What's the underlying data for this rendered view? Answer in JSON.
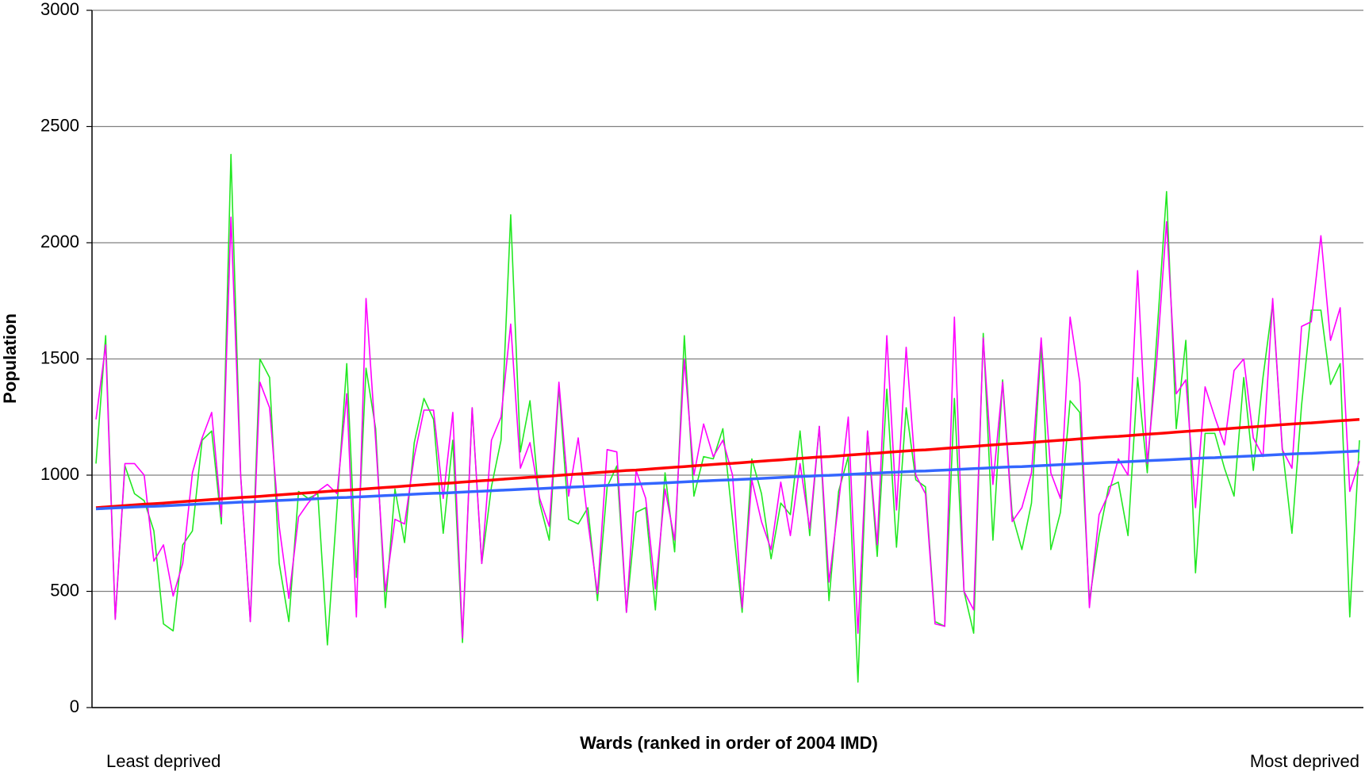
{
  "chart_data": {
    "type": "line",
    "y_label": "Population",
    "x_label": "Wards (ranked in order of 2004 IMD)",
    "annotations": [
      "Least deprived",
      "Most deprived"
    ],
    "ylim": [
      0,
      3000
    ],
    "yticks": [
      0,
      500,
      1000,
      1500,
      2000,
      2500,
      3000
    ],
    "grid": true,
    "series": [
      {
        "color": "#22e822",
        "width": 1.6,
        "values": [
          1050,
          1600,
          380,
          1040,
          920,
          890,
          760,
          360,
          330,
          700,
          760,
          1150,
          1190,
          790,
          2380,
          1000,
          370,
          1500,
          1420,
          620,
          370,
          930,
          900,
          920,
          270,
          870,
          1480,
          560,
          1460,
          1200,
          430,
          940,
          710,
          1140,
          1330,
          1240,
          750,
          1150,
          280,
          1290,
          620,
          950,
          1150,
          2120,
          1100,
          1320,
          880,
          720,
          1380,
          810,
          790,
          860,
          460,
          950,
          1040,
          410,
          840,
          860,
          420,
          1010,
          670,
          1600,
          910,
          1080,
          1070,
          1200,
          810,
          410,
          1070,
          920,
          640,
          880,
          830,
          1190,
          740,
          1210,
          460,
          930,
          1080,
          110,
          1190,
          650,
          1370,
          690,
          1290,
          980,
          950,
          370,
          350,
          1330,
          500,
          320,
          1610,
          720,
          1410,
          830,
          680,
          880,
          1560,
          680,
          840,
          1320,
          1270,
          460,
          740,
          950,
          970,
          740,
          1420,
          1010,
          1600,
          2220,
          1200,
          1580,
          580,
          1180,
          1180,
          1030,
          910,
          1420,
          1020,
          1420,
          1740,
          1120,
          750,
          1300,
          1710,
          1710,
          1390,
          1480,
          390,
          1150
        ]
      },
      {
        "color": "#ff00ff",
        "width": 1.6,
        "values": [
          1240,
          1560,
          380,
          1050,
          1050,
          1000,
          630,
          700,
          480,
          620,
          1010,
          1160,
          1270,
          820,
          2110,
          1000,
          370,
          1400,
          1290,
          780,
          470,
          820,
          880,
          930,
          960,
          920,
          1350,
          390,
          1760,
          1150,
          500,
          810,
          790,
          1080,
          1280,
          1280,
          900,
          1270,
          300,
          1290,
          620,
          1150,
          1250,
          1650,
          1030,
          1140,
          900,
          780,
          1400,
          910,
          1160,
          800,
          490,
          1110,
          1100,
          410,
          1020,
          900,
          510,
          940,
          720,
          1500,
          1000,
          1220,
          1080,
          1150,
          1000,
          430,
          980,
          800,
          680,
          970,
          740,
          1050,
          770,
          1210,
          540,
          880,
          1250,
          320,
          1190,
          700,
          1600,
          850,
          1550,
          1000,
          920,
          360,
          350,
          1680,
          500,
          420,
          1590,
          960,
          1400,
          800,
          860,
          1010,
          1590,
          1010,
          900,
          1680,
          1400,
          430,
          830,
          920,
          1070,
          1000,
          1880,
          1050,
          1500,
          2090,
          1350,
          1410,
          860,
          1380,
          1250,
          1130,
          1450,
          1500,
          1160,
          1080,
          1760,
          1110,
          1030,
          1640,
          1660,
          2030,
          1580,
          1720,
          930,
          1060
        ]
      },
      {
        "color": "#ff0000",
        "width": 3.5,
        "values": [
          860,
          863,
          866,
          869,
          872,
          875,
          877,
          880,
          883,
          886,
          889,
          892,
          895,
          898,
          901,
          904,
          906,
          909,
          912,
          915,
          918,
          921,
          924,
          927,
          930,
          933,
          935,
          938,
          941,
          944,
          947,
          950,
          953,
          956,
          959,
          962,
          964,
          967,
          970,
          973,
          976,
          979,
          982,
          985,
          988,
          991,
          993,
          996,
          999,
          1002,
          1005,
          1008,
          1011,
          1014,
          1017,
          1020,
          1022,
          1025,
          1028,
          1031,
          1034,
          1037,
          1040,
          1043,
          1046,
          1049,
          1051,
          1054,
          1057,
          1060,
          1063,
          1066,
          1069,
          1072,
          1075,
          1078,
          1080,
          1083,
          1086,
          1089,
          1092,
          1095,
          1098,
          1101,
          1104,
          1107,
          1109,
          1112,
          1115,
          1118,
          1121,
          1124,
          1127,
          1130,
          1133,
          1136,
          1138,
          1141,
          1144,
          1147,
          1150,
          1153,
          1156,
          1159,
          1162,
          1165,
          1167,
          1170,
          1173,
          1176,
          1179,
          1182,
          1185,
          1188,
          1191,
          1194,
          1196,
          1199,
          1202,
          1205,
          1208,
          1211,
          1214,
          1217,
          1220,
          1223,
          1225,
          1228,
          1231,
          1234,
          1237,
          1240
        ]
      },
      {
        "color": "#3366ff",
        "width": 3.5,
        "values": [
          855,
          857,
          859,
          861,
          863,
          865,
          866,
          868,
          870,
          872,
          874,
          876,
          878,
          880,
          882,
          884,
          885,
          887,
          889,
          891,
          893,
          895,
          897,
          899,
          901,
          903,
          904,
          906,
          908,
          910,
          912,
          914,
          916,
          918,
          920,
          922,
          923,
          925,
          927,
          929,
          931,
          933,
          935,
          937,
          939,
          941,
          942,
          944,
          946,
          948,
          950,
          952,
          954,
          956,
          958,
          960,
          961,
          963,
          965,
          967,
          969,
          971,
          973,
          975,
          977,
          979,
          980,
          982,
          984,
          986,
          988,
          990,
          992,
          994,
          996,
          998,
          999,
          1001,
          1003,
          1005,
          1007,
          1009,
          1011,
          1013,
          1015,
          1017,
          1018,
          1020,
          1022,
          1024,
          1026,
          1028,
          1030,
          1032,
          1034,
          1036,
          1037,
          1039,
          1041,
          1043,
          1045,
          1047,
          1049,
          1051,
          1053,
          1055,
          1056,
          1058,
          1060,
          1062,
          1064,
          1066,
          1068,
          1070,
          1072,
          1074,
          1075,
          1077,
          1079,
          1081,
          1083,
          1085,
          1087,
          1089,
          1091,
          1093,
          1094,
          1096,
          1098,
          1100,
          1102,
          1104
        ]
      }
    ]
  }
}
